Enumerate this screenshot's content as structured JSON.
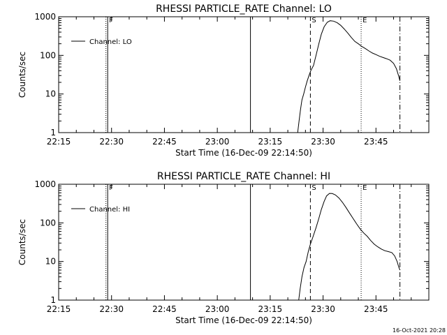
{
  "footer": {
    "timestamp": "16-Oct-2021 20:28"
  },
  "chart_data": [
    {
      "type": "line",
      "title": "RHESSI PARTICLE_RATE Channel: LO",
      "xlabel": "Start Time (16-Dec-09 22:14:50)",
      "ylabel": "Counts/sec",
      "yscale": "log",
      "xlim_minutes": [
        0,
        105
      ],
      "ylim": [
        1,
        1000
      ],
      "x_ticks": [
        {
          "label": "22:15",
          "minute": 0
        },
        {
          "label": "22:30",
          "minute": 15
        },
        {
          "label": "22:45",
          "minute": 30
        },
        {
          "label": "23:00",
          "minute": 45
        },
        {
          "label": "23:15",
          "minute": 60
        },
        {
          "label": "23:30",
          "minute": 75
        },
        {
          "label": "23:45",
          "minute": 90
        }
      ],
      "y_ticks": [
        {
          "label": "1",
          "value": 1
        },
        {
          "label": "10",
          "value": 10
        },
        {
          "label": "100",
          "value": 100
        },
        {
          "label": "1000",
          "value": 1000
        }
      ],
      "legend": {
        "position": "top-left",
        "entries": [
          "Channel: LO"
        ]
      },
      "vlines": [
        {
          "label": "",
          "minute": 13.4,
          "style": "dotted"
        },
        {
          "label": "F",
          "minute": 13.9,
          "style": "solid"
        },
        {
          "label": "",
          "minute": 54.4,
          "style": "solid"
        },
        {
          "label": "S",
          "minute": 71.4,
          "style": "dashed"
        },
        {
          "label": "E",
          "minute": 85.8,
          "style": "dotted"
        },
        {
          "label": "",
          "minute": 96.8,
          "style": "dashdot"
        }
      ],
      "series": [
        {
          "name": "Channel: LO",
          "points": [
            [
              67.8,
              1
            ],
            [
              68.2,
              2
            ],
            [
              68.6,
              4
            ],
            [
              69.0,
              7
            ],
            [
              69.5,
              10
            ],
            [
              70.0,
              15
            ],
            [
              70.5,
              22
            ],
            [
              71.0,
              30
            ],
            [
              71.5,
              40
            ],
            [
              72.3,
              55
            ],
            [
              73.0,
              100
            ],
            [
              73.8,
              200
            ],
            [
              74.5,
              350
            ],
            [
              75.3,
              550
            ],
            [
              76.2,
              720
            ],
            [
              77.0,
              790
            ],
            [
              78.0,
              770
            ],
            [
              79.0,
              700
            ],
            [
              80.0,
              600
            ],
            [
              81.0,
              480
            ],
            [
              82.0,
              380
            ],
            [
              83.0,
              290
            ],
            [
              84.0,
              230
            ],
            [
              85.0,
              200
            ],
            [
              86.0,
              170
            ],
            [
              87.0,
              150
            ],
            [
              88.0,
              130
            ],
            [
              89.0,
              115
            ],
            [
              90.0,
              105
            ],
            [
              91.0,
              95
            ],
            [
              92.0,
              88
            ],
            [
              93.0,
              82
            ],
            [
              94.0,
              75
            ],
            [
              95.0,
              62
            ],
            [
              95.8,
              45
            ],
            [
              96.4,
              30
            ],
            [
              96.8,
              22
            ]
          ]
        }
      ]
    },
    {
      "type": "line",
      "title": "RHESSI PARTICLE_RATE Channel: HI",
      "xlabel": "Start Time (16-Dec-09 22:14:50)",
      "ylabel": "Counts/sec",
      "yscale": "log",
      "xlim_minutes": [
        0,
        105
      ],
      "ylim": [
        1,
        1000
      ],
      "x_ticks": [
        {
          "label": "22:15",
          "minute": 0
        },
        {
          "label": "22:30",
          "minute": 15
        },
        {
          "label": "22:45",
          "minute": 30
        },
        {
          "label": "23:00",
          "minute": 45
        },
        {
          "label": "23:15",
          "minute": 60
        },
        {
          "label": "23:30",
          "minute": 75
        },
        {
          "label": "23:45",
          "minute": 90
        }
      ],
      "y_ticks": [
        {
          "label": "1",
          "value": 1
        },
        {
          "label": "10",
          "value": 10
        },
        {
          "label": "100",
          "value": 100
        },
        {
          "label": "1000",
          "value": 1000
        }
      ],
      "legend": {
        "position": "top-left",
        "entries": [
          "Channel: HI"
        ]
      },
      "vlines": [
        {
          "label": "",
          "minute": 13.4,
          "style": "dotted"
        },
        {
          "label": "F",
          "minute": 13.9,
          "style": "solid"
        },
        {
          "label": "",
          "minute": 54.4,
          "style": "solid"
        },
        {
          "label": "S",
          "minute": 71.4,
          "style": "dashed"
        },
        {
          "label": "E",
          "minute": 85.8,
          "style": "dotted"
        },
        {
          "label": "",
          "minute": 96.8,
          "style": "dashdot"
        }
      ],
      "series": [
        {
          "name": "Channel: HI",
          "points": [
            [
              68.1,
              1
            ],
            [
              68.5,
              2
            ],
            [
              69.0,
              4
            ],
            [
              69.6,
              7
            ],
            [
              70.2,
              10
            ],
            [
              70.8,
              18
            ],
            [
              71.4,
              28
            ],
            [
              72.2,
              45
            ],
            [
              73.0,
              75
            ],
            [
              73.8,
              130
            ],
            [
              74.5,
              220
            ],
            [
              75.3,
              360
            ],
            [
              76.0,
              500
            ],
            [
              76.8,
              580
            ],
            [
              77.6,
              575
            ],
            [
              78.5,
              530
            ],
            [
              79.5,
              440
            ],
            [
              80.5,
              340
            ],
            [
              81.5,
              250
            ],
            [
              82.5,
              180
            ],
            [
              83.5,
              130
            ],
            [
              84.5,
              95
            ],
            [
              85.5,
              70
            ],
            [
              86.5,
              55
            ],
            [
              87.5,
              45
            ],
            [
              88.5,
              35
            ],
            [
              89.5,
              28
            ],
            [
              90.5,
              24
            ],
            [
              91.5,
              21
            ],
            [
              92.5,
              19
            ],
            [
              93.5,
              18
            ],
            [
              94.5,
              17
            ],
            [
              95.3,
              14
            ],
            [
              96.0,
              10
            ],
            [
              96.5,
              7
            ],
            [
              96.8,
              6
            ]
          ]
        }
      ]
    }
  ]
}
